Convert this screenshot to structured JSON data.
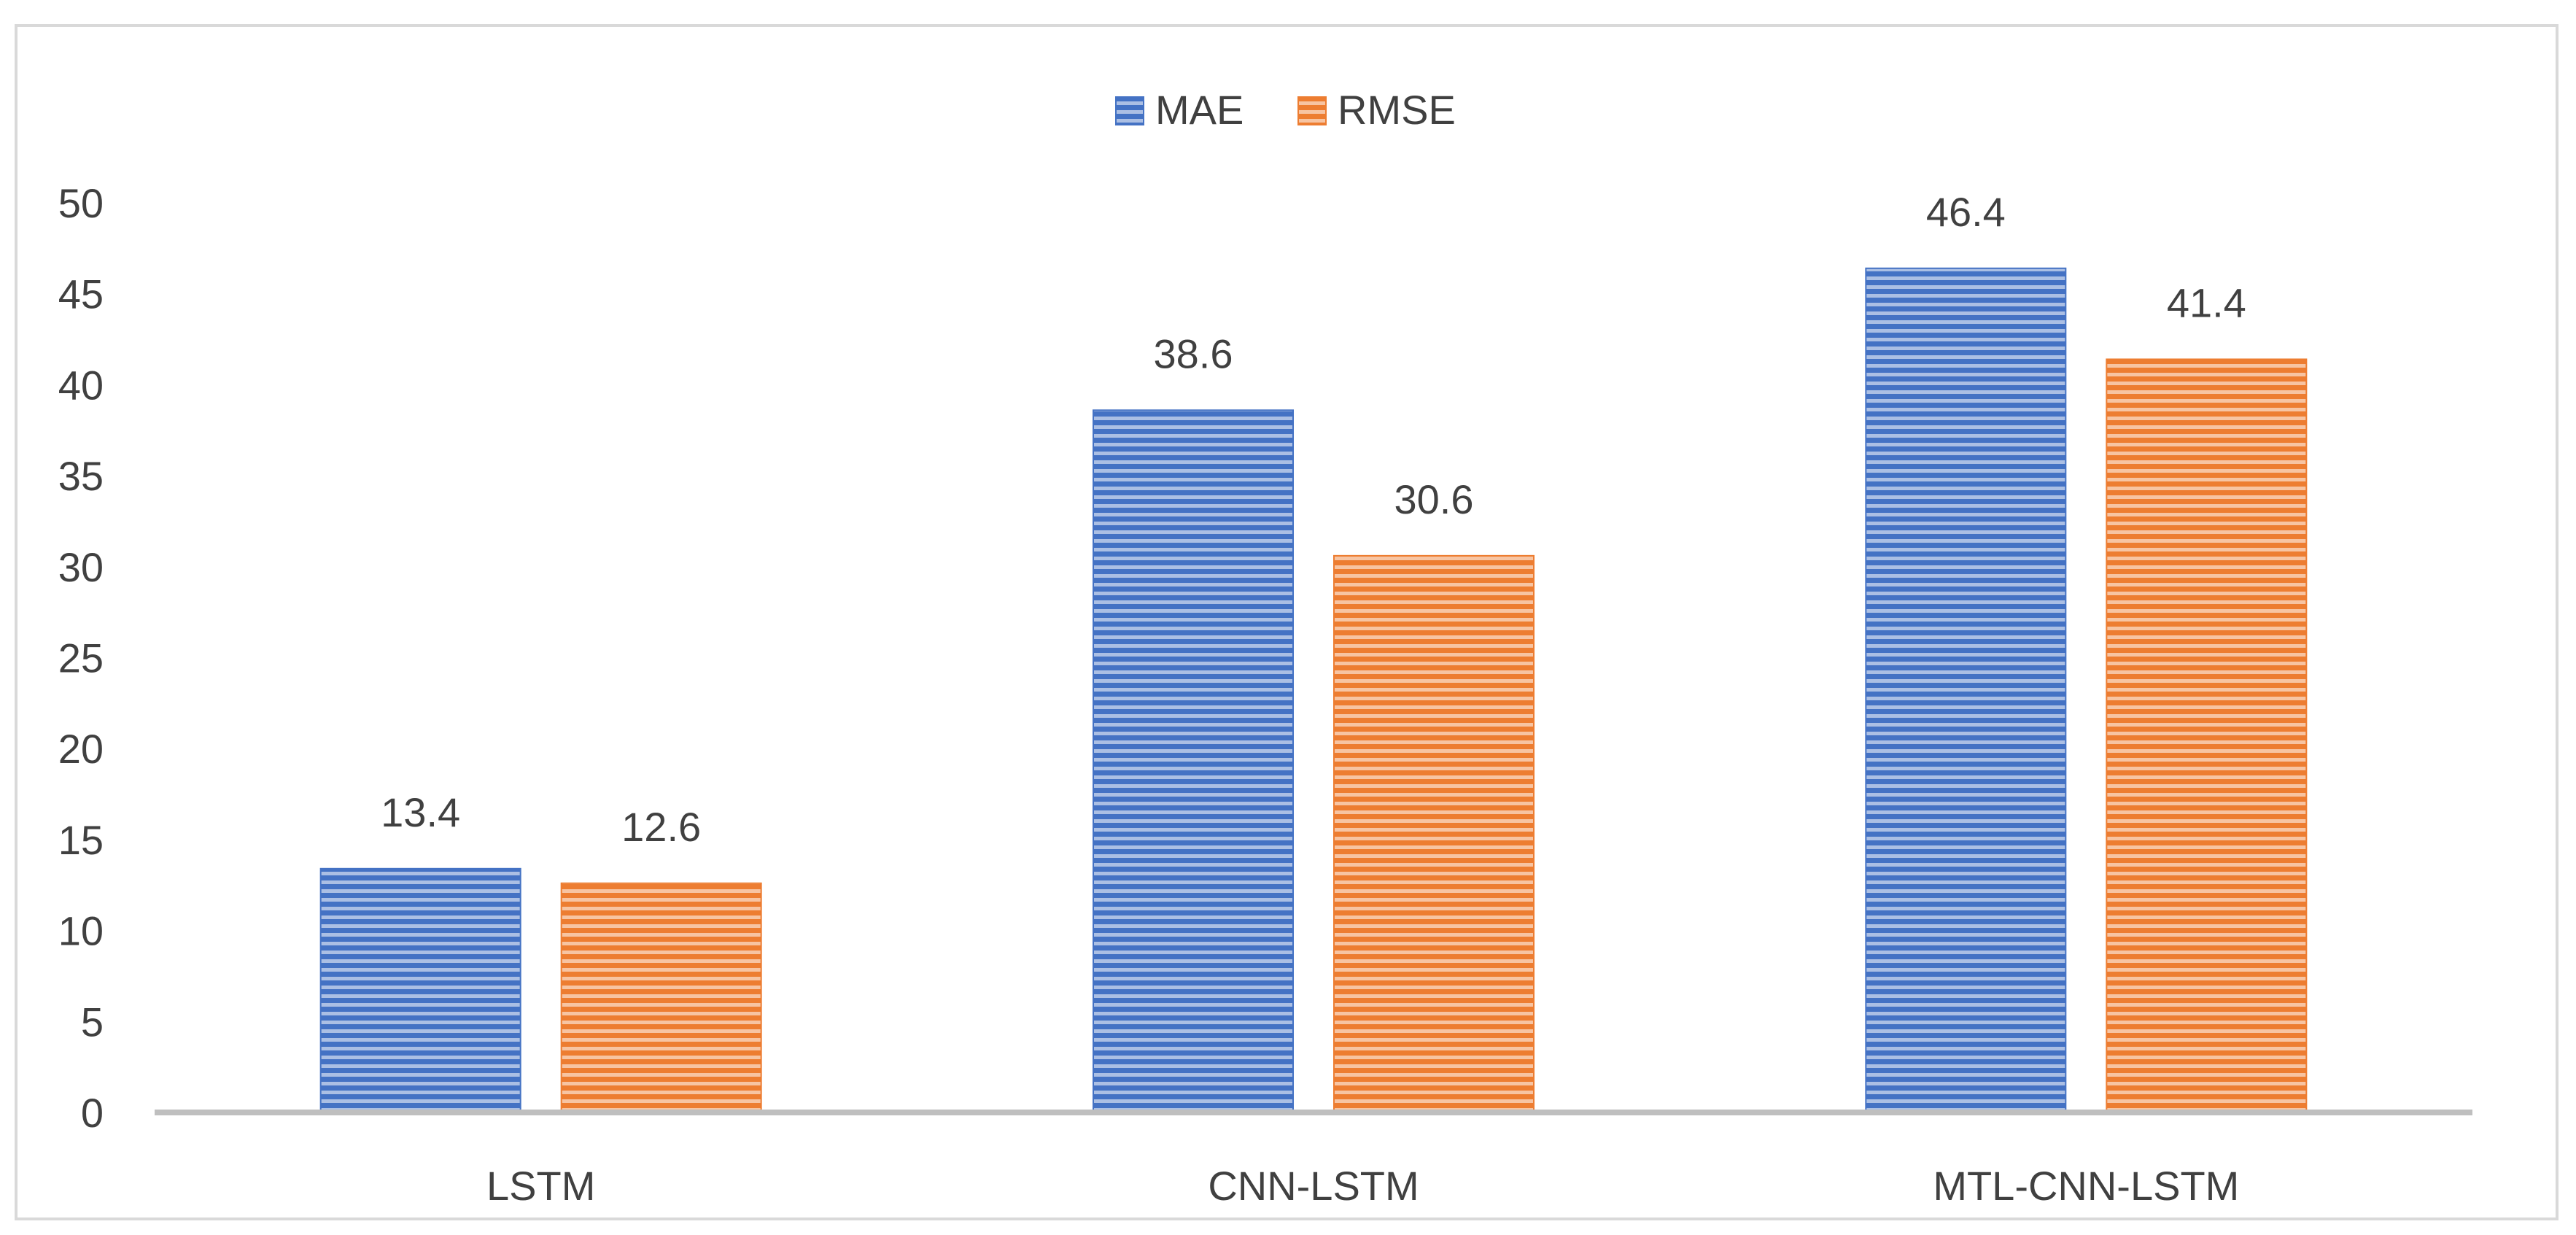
{
  "chart_data": {
    "type": "bar",
    "categories": [
      "LSTM",
      "CNN-LSTM",
      "MTL-CNN-LSTM"
    ],
    "series": [
      {
        "name": "MAE",
        "values": [
          13.4,
          38.6,
          46.4
        ],
        "color": "#4472c4",
        "labels": [
          "13.4",
          "38.6",
          "46.4"
        ]
      },
      {
        "name": "RMSE",
        "values": [
          12.6,
          30.6,
          41.4
        ],
        "color": "#ed7d31",
        "labels": [
          "12.6",
          "30.6",
          "41.4"
        ]
      }
    ],
    "ylim": [
      0,
      50
    ],
    "yticks": [
      "0",
      "5",
      "10",
      "15",
      "20",
      "25",
      "30",
      "35",
      "40",
      "45",
      "50"
    ],
    "grid": false,
    "legend_position": "top-center",
    "bar_pattern": "horizontal-stripes"
  }
}
